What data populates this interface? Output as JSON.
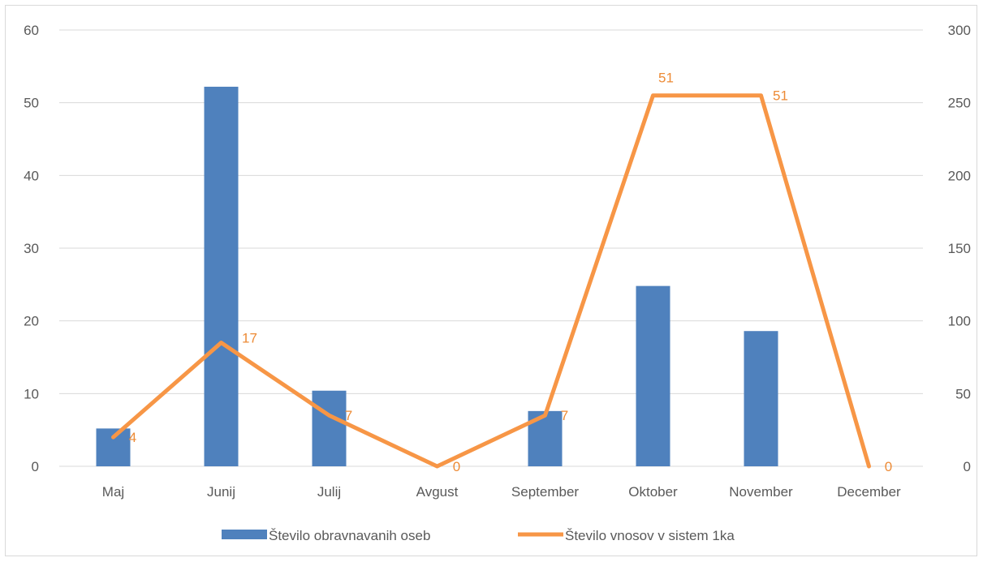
{
  "chart_data": {
    "type": "bar+line",
    "categories": [
      "Maj",
      "Junij",
      "Julij",
      "Avgust",
      "September",
      "Oktober",
      "November",
      "December"
    ],
    "series": [
      {
        "name": "Število obravnavanih oseb",
        "type": "bar",
        "axis": "left",
        "color": "#4f81bd",
        "values": [
          5.2,
          52.2,
          10.4,
          0,
          7.6,
          24.8,
          18.6,
          0
        ]
      },
      {
        "name": "Število vnosov v sistem 1ka",
        "type": "line",
        "axis": "right",
        "color": "#f79646",
        "values": [
          20,
          85,
          35,
          0,
          35,
          255,
          255,
          0
        ],
        "data_labels": [
          "4",
          "17",
          "7",
          "0",
          "7",
          "51",
          "51",
          "0"
        ]
      }
    ],
    "y_left": {
      "min": 0,
      "max": 60,
      "ticks": [
        "0",
        "10",
        "20",
        "30",
        "40",
        "50",
        "60"
      ]
    },
    "y_right": {
      "min": 0,
      "max": 300,
      "ticks": [
        "0",
        "50",
        "100",
        "150",
        "200",
        "250",
        "300"
      ]
    },
    "grid": true,
    "legend": "bottom"
  }
}
